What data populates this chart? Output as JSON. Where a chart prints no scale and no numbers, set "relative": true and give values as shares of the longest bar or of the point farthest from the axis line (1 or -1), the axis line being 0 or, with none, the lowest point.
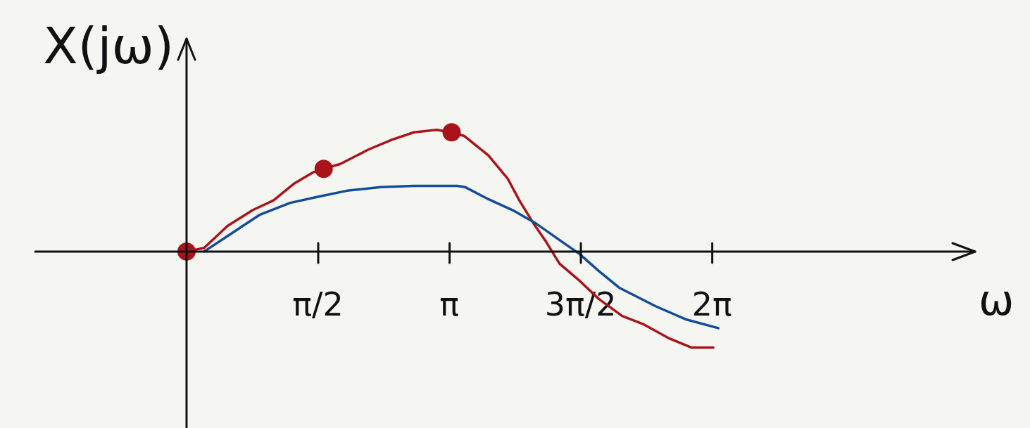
{
  "chart_data": {
    "type": "line",
    "relative": true,
    "xlabel": "ω",
    "ylabel": "X(jω)",
    "marker": "none",
    "xlim": [
      -1.81,
      9.43
    ],
    "xticks": [
      {
        "value": 1.571,
        "label": "π/2"
      },
      {
        "value": 3.142,
        "label": "π"
      },
      {
        "value": 4.712,
        "label": "3π/2"
      },
      {
        "value": 6.283,
        "label": "2π"
      }
    ],
    "series": [
      {
        "color": "#a8141a",
        "x": [
          0,
          0.21,
          0.49,
          0.79,
          1.04,
          1.29,
          1.51,
          1.64,
          1.84,
          2.18,
          2.46,
          2.72,
          2.99,
          3.17,
          3.32,
          3.61,
          3.84,
          3.98,
          4.15,
          4.3,
          4.46,
          4.7,
          4.93,
          5.21,
          5.47,
          5.76,
          6.04,
          6.3
        ],
        "values": [
          0,
          0.03,
          0.21,
          0.34,
          0.42,
          0.56,
          0.65,
          0.68,
          0.72,
          0.84,
          0.92,
          0.98,
          1.0,
          0.98,
          0.95,
          0.79,
          0.6,
          0.42,
          0.23,
          0.08,
          -0.1,
          -0.24,
          -0.39,
          -0.53,
          -0.6,
          -0.71,
          -0.79,
          -0.79
        ]
      },
      {
        "color": "#124c9a",
        "x": [
          0.21,
          0.54,
          0.87,
          1.24,
          1.57,
          1.92,
          2.32,
          2.72,
          3.24,
          3.33,
          3.61,
          3.9,
          4.18,
          4.47,
          4.7,
          4.93,
          5.18,
          5.61,
          5.98,
          6.36
        ],
        "values": [
          0,
          0.15,
          0.3,
          0.4,
          0.45,
          0.5,
          0.53,
          0.54,
          0.54,
          0.53,
          0.43,
          0.34,
          0.23,
          0.09,
          -0.02,
          -0.16,
          -0.3,
          -0.45,
          -0.56,
          -0.63
        ]
      },
      {
        "type": "scatter",
        "marker": "circle",
        "color": "#a8141a",
        "x": [
          0,
          1.64,
          3.17
        ],
        "values": [
          0,
          0.68,
          0.98
        ]
      }
    ]
  }
}
